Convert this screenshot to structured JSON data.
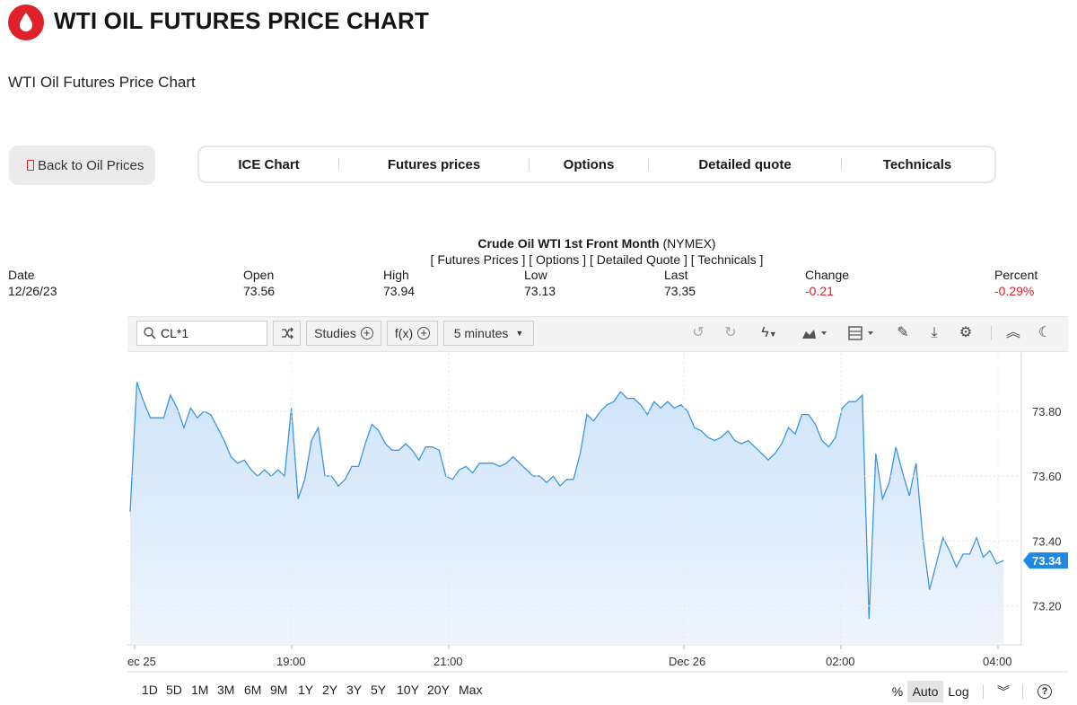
{
  "header": {
    "title": "WTI OIL FUTURES PRICE CHART",
    "subtitle": "WTI Oil Futures Price Chart"
  },
  "back_button": {
    "label": "Back to Oil Prices"
  },
  "tabs": [
    "ICE Chart",
    "Futures prices",
    "Options",
    "Detailed quote",
    "Technicals"
  ],
  "quote": {
    "instrument": "Crude Oil WTI 1st Front Month",
    "exchange": "(NYMEX)",
    "links": "[ Futures Prices ] [ Options ] [ Detailed Quote ] [ Technicals ]",
    "fields": [
      {
        "label": "Date",
        "value": "12/26/23"
      },
      {
        "label": "Open",
        "value": "73.56"
      },
      {
        "label": "High",
        "value": "73.94"
      },
      {
        "label": "Low",
        "value": "73.13"
      },
      {
        "label": "Last",
        "value": "73.35"
      },
      {
        "label": "Change",
        "value": "-0.21"
      },
      {
        "label": "Percent",
        "value": "-0.29%"
      }
    ]
  },
  "toolbar": {
    "symbol": "CL*1",
    "studies_label": "Studies",
    "fx_label": "f(x)",
    "interval_label": "5 minutes",
    "icons": [
      "shuffle-icon",
      "undo-icon",
      "redo-icon",
      "lightning-icon",
      "chart-type-icon",
      "layout-icon",
      "pencil-icon",
      "download-icon",
      "gear-icon",
      "collapse-icon",
      "moon-icon"
    ]
  },
  "ranges": [
    "1D",
    "5D",
    "1M",
    "3M",
    "6M",
    "9M",
    "1Y",
    "2Y",
    "3Y",
    "5Y",
    "10Y",
    "20Y",
    "Max"
  ],
  "scale_options": [
    "%",
    "Auto",
    "Log"
  ],
  "scale_selected": "Auto",
  "colors": {
    "brand": "#e0212b",
    "line": "#3b97e3",
    "fill": "#d6e8fb",
    "price_tag": "#1e88e5",
    "negative": "#e0212b"
  },
  "chart_data": {
    "type": "area",
    "xlabel": "",
    "ylabel": "",
    "x_ticks": [
      "ec 25",
      "19:00",
      "21:00",
      "Dec 26",
      "02:00",
      "04:00"
    ],
    "y_ticks": [
      "73.80",
      "73.60",
      "73.40",
      "73.20"
    ],
    "ylim": [
      73.08,
      73.98
    ],
    "last_price_label": "73.34",
    "grid": true,
    "series": [
      {
        "values": [
          73.49,
          73.89,
          73.83,
          73.78,
          73.78,
          73.78,
          73.85,
          73.81,
          73.75,
          73.81,
          73.78,
          73.8,
          73.79,
          73.75,
          73.71,
          73.66,
          73.64,
          73.65,
          73.62,
          73.6,
          73.62,
          73.6,
          73.62,
          73.6,
          73.81,
          73.53,
          73.59,
          73.71,
          73.75,
          73.6,
          73.6,
          73.57,
          73.59,
          73.63,
          73.63,
          73.7,
          73.76,
          73.74,
          73.7,
          73.68,
          73.68,
          73.7,
          73.68,
          73.65,
          73.69,
          73.69,
          73.68,
          73.6,
          73.59,
          73.62,
          73.63,
          73.61,
          73.64,
          73.64,
          73.64,
          73.63,
          73.64,
          73.66,
          73.64,
          73.62,
          73.6,
          73.6,
          73.58,
          73.6,
          73.57,
          73.59,
          73.59,
          73.67,
          73.79,
          73.77,
          73.8,
          73.82,
          73.83,
          73.86,
          73.84,
          73.84,
          73.82,
          73.79,
          73.83,
          73.81,
          73.83,
          73.81,
          73.82,
          73.8,
          73.75,
          73.74,
          73.72,
          73.71,
          73.72,
          73.74,
          73.71,
          73.7,
          73.71,
          73.69,
          73.67,
          73.65,
          73.67,
          73.7,
          73.75,
          73.73,
          73.79,
          73.79,
          73.76,
          73.71,
          73.69,
          73.72,
          73.81,
          73.83,
          73.83,
          73.85,
          73.16,
          73.67,
          73.53,
          73.58,
          73.69,
          73.61,
          73.54,
          73.64,
          73.41,
          73.25,
          73.33,
          73.41,
          73.37,
          73.32,
          73.36,
          73.36,
          73.41,
          73.35,
          73.37,
          73.33,
          73.34
        ]
      }
    ]
  }
}
